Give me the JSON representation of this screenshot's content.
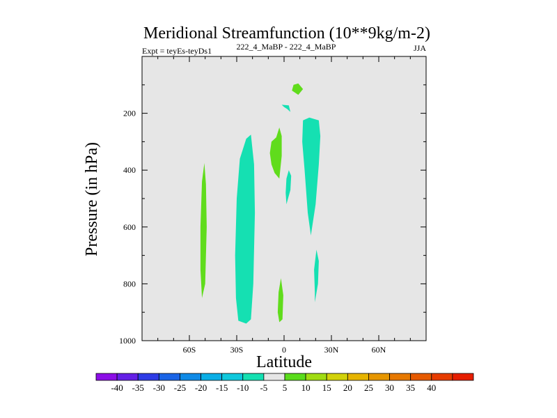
{
  "chart_data": {
    "type": "contour",
    "title": "Meridional Streamfunction (10**9kg/m-2)",
    "subtitle_left": "Expt = teyEs-teyDs1",
    "subtitle_center": "222_4_MaBP - 222_4_MaBP",
    "subtitle_right": "JJA",
    "xlabel": "Latitude",
    "ylabel": "Pressure (in hPa)",
    "xlim": [
      -90,
      90
    ],
    "ylim": [
      1000,
      0
    ],
    "x_ticks": [
      {
        "value": -60,
        "label": "60S"
      },
      {
        "value": -30,
        "label": "30S"
      },
      {
        "value": 0,
        "label": "0"
      },
      {
        "value": 30,
        "label": "30N"
      },
      {
        "value": 60,
        "label": "60N"
      }
    ],
    "y_ticks": [
      {
        "value": 200,
        "label": "200"
      },
      {
        "value": 400,
        "label": "400"
      },
      {
        "value": 600,
        "label": "600"
      },
      {
        "value": 800,
        "label": "800"
      },
      {
        "value": 1000,
        "label": "1000"
      }
    ],
    "background_color": "#e6e6e6",
    "regions": [
      {
        "name": "neg-band-south",
        "level": "-10 to -5",
        "color": "#15e0b2",
        "points": [
          [
            -29,
            930
          ],
          [
            -24,
            940
          ],
          [
            -21,
            925
          ],
          [
            -19.5,
            800
          ],
          [
            -18.5,
            550
          ],
          [
            -19,
            380
          ],
          [
            -21,
            275
          ],
          [
            -24,
            290
          ],
          [
            -28,
            360
          ],
          [
            -30,
            500
          ],
          [
            -31,
            700
          ],
          [
            -30.5,
            850
          ]
        ]
      },
      {
        "name": "pos-band-60s",
        "level": "5 to 10",
        "color": "#60dc1c",
        "points": [
          [
            -52,
            850
          ],
          [
            -50,
            800
          ],
          [
            -49,
            600
          ],
          [
            -49.5,
            450
          ],
          [
            -50.5,
            375
          ],
          [
            -52,
            440
          ],
          [
            -53,
            600
          ],
          [
            -53,
            750
          ]
        ]
      },
      {
        "name": "pos-blob-near-eq",
        "level": "5 to 10",
        "color": "#60dc1c",
        "points": [
          [
            -3,
            430
          ],
          [
            -1.5,
            350
          ],
          [
            -1.5,
            280
          ],
          [
            -3,
            250
          ],
          [
            -5,
            285
          ],
          [
            -8,
            300
          ],
          [
            -9,
            340
          ],
          [
            -8,
            380
          ],
          [
            -6,
            410
          ]
        ]
      },
      {
        "name": "pos-blob-low-eq",
        "level": "5 to 10",
        "color": "#60dc1c",
        "points": [
          [
            -3,
            935
          ],
          [
            -1,
            925
          ],
          [
            -0.5,
            840
          ],
          [
            -2,
            780
          ],
          [
            -3.5,
            830
          ],
          [
            -4,
            900
          ]
        ]
      },
      {
        "name": "pos-blob-top",
        "level": "5 to 10",
        "color": "#60dc1c",
        "points": [
          [
            5,
            120
          ],
          [
            9,
            135
          ],
          [
            12,
            115
          ],
          [
            9,
            95
          ],
          [
            6,
            100
          ]
        ]
      },
      {
        "name": "neg-blob-top",
        "level": "-10 to -5",
        "color": "#15e0b2",
        "points": [
          [
            -1.5,
            170
          ],
          [
            3,
            172
          ],
          [
            4,
            195
          ],
          [
            2,
            185
          ],
          [
            0,
            178
          ]
        ]
      },
      {
        "name": "neg-sliver-eq",
        "level": "-10 to -5",
        "color": "#15e0b2",
        "points": [
          [
            1.5,
            520
          ],
          [
            4,
            470
          ],
          [
            4.5,
            420
          ],
          [
            3,
            400
          ],
          [
            1.5,
            430
          ],
          [
            1,
            480
          ]
        ]
      },
      {
        "name": "neg-band-north",
        "level": "-10 to -5",
        "color": "#15e0b2",
        "points": [
          [
            17,
            630
          ],
          [
            20,
            520
          ],
          [
            22,
            380
          ],
          [
            23,
            280
          ],
          [
            22,
            225
          ],
          [
            16,
            215
          ],
          [
            12,
            225
          ],
          [
            11.5,
            300
          ],
          [
            13,
            400
          ],
          [
            15,
            550
          ]
        ]
      },
      {
        "name": "neg-blob-north-low",
        "level": "-10 to -5",
        "color": "#15e0b2",
        "points": [
          [
            19.5,
            865
          ],
          [
            21.5,
            800
          ],
          [
            22,
            720
          ],
          [
            20.5,
            680
          ],
          [
            19,
            750
          ],
          [
            19.5,
            830
          ]
        ]
      }
    ],
    "colorbar": {
      "colors": [
        "#8c0ee6",
        "#6420e6",
        "#2e3ce6",
        "#1a64e6",
        "#0f8ae6",
        "#0aaee6",
        "#0fc8dc",
        "#15e0b2",
        "#e6e6e6",
        "#5adc1c",
        "#a0dc12",
        "#d2d20a",
        "#e6b400",
        "#e69600",
        "#e67800",
        "#e65a00",
        "#e63c00",
        "#e61e00"
      ],
      "labels": [
        "-40",
        "-35",
        "-30",
        "-25",
        "-20",
        "-15",
        "-10",
        "-5",
        "5",
        "10",
        "15",
        "20",
        "25",
        "30",
        "35",
        "40"
      ]
    }
  }
}
